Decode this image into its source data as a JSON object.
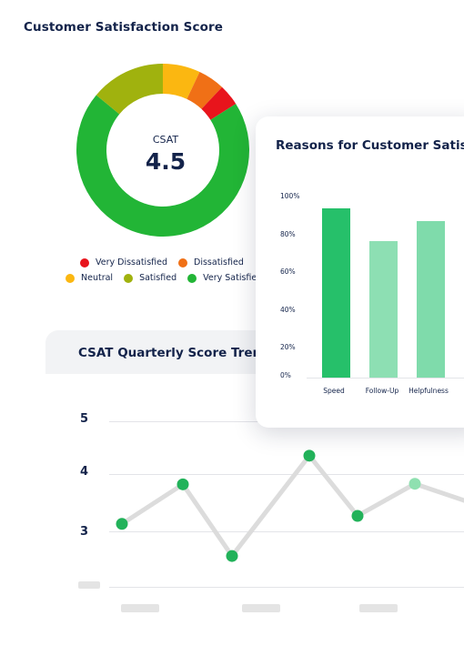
{
  "satisfaction": {
    "title": "Customer Satisfaction Score",
    "center_label": "CSAT",
    "center_value": "4.5",
    "legend": [
      {
        "label": "Very Dissatisfied",
        "color": "#e8141c"
      },
      {
        "label": "Dissatisfied",
        "color": "#f07016"
      },
      {
        "label": "Neutral",
        "color": "#fbb711"
      },
      {
        "label": "Satisfied",
        "color": "#a0b20e"
      },
      {
        "label": "Very Satisfied",
        "color": "#22b536"
      }
    ]
  },
  "reasons": {
    "title": "Reasons for Customer Satisfaction",
    "y_ticks": [
      "100%",
      "80%",
      "60%",
      "40%",
      "20%",
      "0%"
    ],
    "bars": [
      {
        "label": "Speed",
        "value": 93,
        "color": "#26c06a"
      },
      {
        "label": "Follow-Up",
        "value": 75,
        "color": "#8ddfb3"
      },
      {
        "label": "Helpfulness",
        "value": 86,
        "color": "#7fdbab"
      }
    ]
  },
  "trend": {
    "title": "CSAT Quarterly Score Trend",
    "y_ticks": [
      "5",
      "4",
      "3"
    ]
  },
  "chart_data": [
    {
      "type": "pie",
      "title": "Customer Satisfaction Score",
      "categories": [
        "Very Dissatisfied",
        "Dissatisfied",
        "Neutral",
        "Satisfied",
        "Very Satisfied"
      ],
      "values": [
        4,
        5,
        7,
        14,
        70
      ],
      "colors": [
        "#e8141c",
        "#f07016",
        "#fbb711",
        "#a0b20e",
        "#22b536"
      ],
      "legend": "bottom"
    },
    {
      "type": "bar",
      "title": "Reasons for Customer Satisfaction",
      "categories": [
        "Speed",
        "Follow-Up",
        "Helpfulness"
      ],
      "values": [
        93,
        75,
        86
      ],
      "ylim": [
        0,
        100
      ]
    },
    {
      "type": "line",
      "title": "CSAT Quarterly Score Trend",
      "x": [
        1,
        2,
        3,
        4,
        5,
        6
      ],
      "values": [
        3.13,
        3.82,
        2.57,
        4.32,
        3.27,
        3.83
      ],
      "ylim": [
        2.5,
        5
      ],
      "grid": true
    }
  ]
}
